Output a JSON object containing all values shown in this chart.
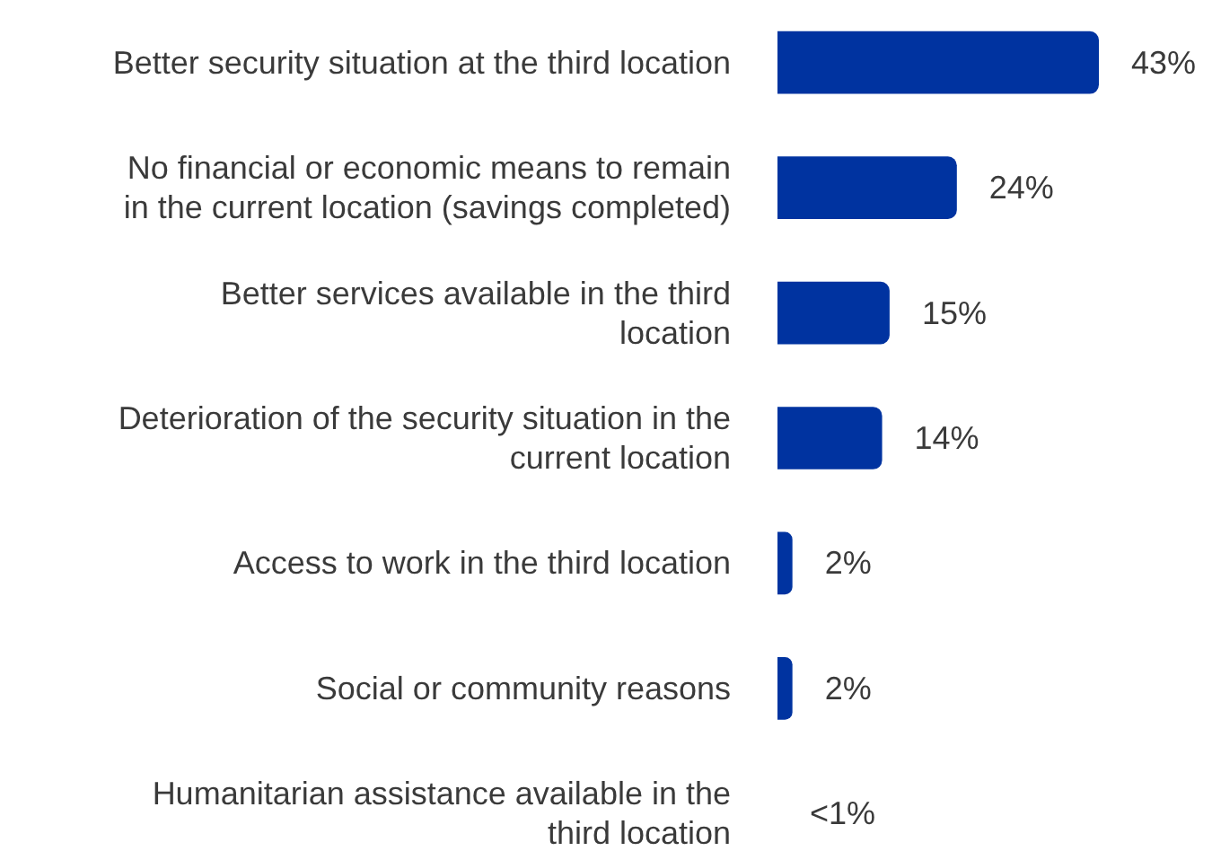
{
  "chart_data": {
    "type": "bar",
    "orientation": "horizontal",
    "categories": [
      "Better security situation at the third location",
      "No financial or economic means to remain in the current location (savings completed)",
      "Better services available in the third location",
      "Deterioration of the security situation in the current location",
      "Access to work in the third location",
      "Social or community reasons",
      "Humanitarian assistance available in the third location"
    ],
    "values": [
      43,
      24,
      15,
      14,
      2,
      2,
      0
    ],
    "value_labels": [
      "43%",
      "24%",
      "15%",
      "14%",
      "2%",
      "2%",
      "<1%"
    ],
    "color": "#0033a0"
  }
}
